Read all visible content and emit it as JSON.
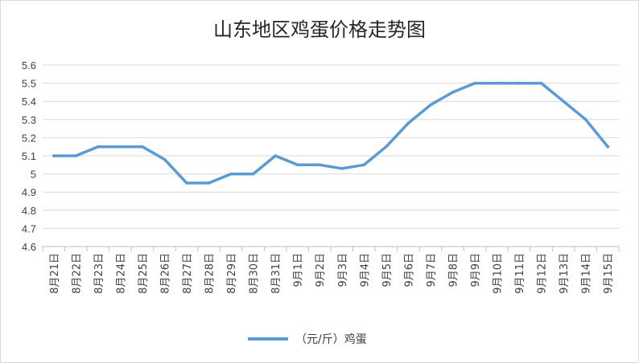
{
  "chart_data": {
    "type": "line",
    "title": "山东地区鸡蛋价格走势图",
    "xlabel": "",
    "ylabel": "",
    "ylim": [
      4.6,
      5.6
    ],
    "yticks": [
      "4.6",
      "4.7",
      "4.8",
      "4.9",
      "5",
      "5.1",
      "5.2",
      "5.3",
      "5.4",
      "5.5",
      "5.6"
    ],
    "categories": [
      "8月21日",
      "8月22日",
      "8月23日",
      "8月24日",
      "8月25日",
      "8月26日",
      "8月27日",
      "8月28日",
      "8月29日",
      "8月30日",
      "8月31日",
      "9月1日",
      "9月2日",
      "9月3日",
      "9月4日",
      "9月5日",
      "9月6日",
      "9月7日",
      "9月8日",
      "9月9日",
      "9月10日",
      "9月11日",
      "9月12日",
      "9月13日",
      "9月14日",
      "9月15日"
    ],
    "series": [
      {
        "name": "（元/斤）鸡蛋",
        "color": "#5B9BD5",
        "values": [
          5.1,
          5.1,
          5.15,
          5.15,
          5.15,
          5.08,
          4.95,
          4.95,
          5.0,
          5.0,
          5.1,
          5.05,
          5.05,
          5.03,
          5.05,
          5.15,
          5.28,
          5.38,
          5.45,
          5.5,
          5.5,
          5.5,
          5.5,
          5.4,
          5.3,
          5.15
        ]
      }
    ],
    "grid": true,
    "legend": "bottom"
  }
}
